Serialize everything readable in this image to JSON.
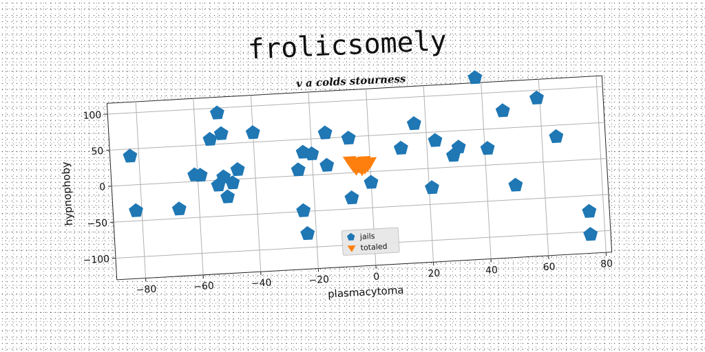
{
  "chart_data": {
    "type": "scatter",
    "title": "frolicsomely",
    "subtitle": "v a colds stourness",
    "xlabel": "plasmacytoma",
    "ylabel": "hypnophoby",
    "xlim": [
      -90,
      82
    ],
    "ylim": [
      -130,
      115
    ],
    "xticks": [
      -80,
      -60,
      -40,
      -20,
      0,
      20,
      40,
      60,
      80
    ],
    "yticks": [
      -100,
      -50,
      0,
      50,
      100
    ],
    "grid": true,
    "legend_position": "bottom-center",
    "series": [
      {
        "name": "jails",
        "marker": "pentagon",
        "color": "#1f77b4",
        "points": [
          [
            -83,
            40
          ],
          [
            -82,
            -36
          ],
          [
            -67,
            -37
          ],
          [
            -61,
            9
          ],
          [
            -59,
            8
          ],
          [
            -55,
            57
          ],
          [
            -52,
            93
          ],
          [
            -51,
            64
          ],
          [
            -53,
            -7
          ],
          [
            -51,
            4
          ],
          [
            -50,
            -24
          ],
          [
            -48,
            -5
          ],
          [
            -46,
            13
          ],
          [
            -40,
            63
          ],
          [
            -25,
            8
          ],
          [
            -23,
            32
          ],
          [
            -20,
            29
          ],
          [
            -24,
            -49
          ],
          [
            -23,
            -81
          ],
          [
            -15,
            57
          ],
          [
            -15,
            12
          ],
          [
            -7,
            48
          ],
          [
            -7,
            -35
          ],
          [
            0,
            -15
          ],
          [
            11,
            30
          ],
          [
            16,
            63
          ],
          [
            23,
            38
          ],
          [
            21,
            -27
          ],
          [
            29,
            16
          ],
          [
            31,
            27
          ],
          [
            41,
            23
          ],
          [
            38,
            122
          ],
          [
            47,
            74
          ],
          [
            50,
            -30
          ],
          [
            59,
            89
          ],
          [
            65,
            34
          ],
          [
            75,
            -72
          ],
          [
            75,
            -104
          ]
        ]
      },
      {
        "name": "totaled",
        "marker": "triangle-down",
        "color": "#ff7f0e",
        "points": [
          [
            -7,
            17
          ],
          [
            -6,
            10
          ],
          [
            -5,
            14
          ],
          [
            -4,
            8
          ],
          [
            -3,
            12
          ],
          [
            -2,
            16
          ],
          [
            -1,
            9
          ],
          [
            -5,
            5
          ],
          [
            -3,
            4
          ],
          [
            -2,
            6
          ],
          [
            -6,
            13
          ],
          [
            0,
            14
          ],
          [
            -1,
            11
          ],
          [
            -4,
            15
          ]
        ]
      }
    ]
  }
}
